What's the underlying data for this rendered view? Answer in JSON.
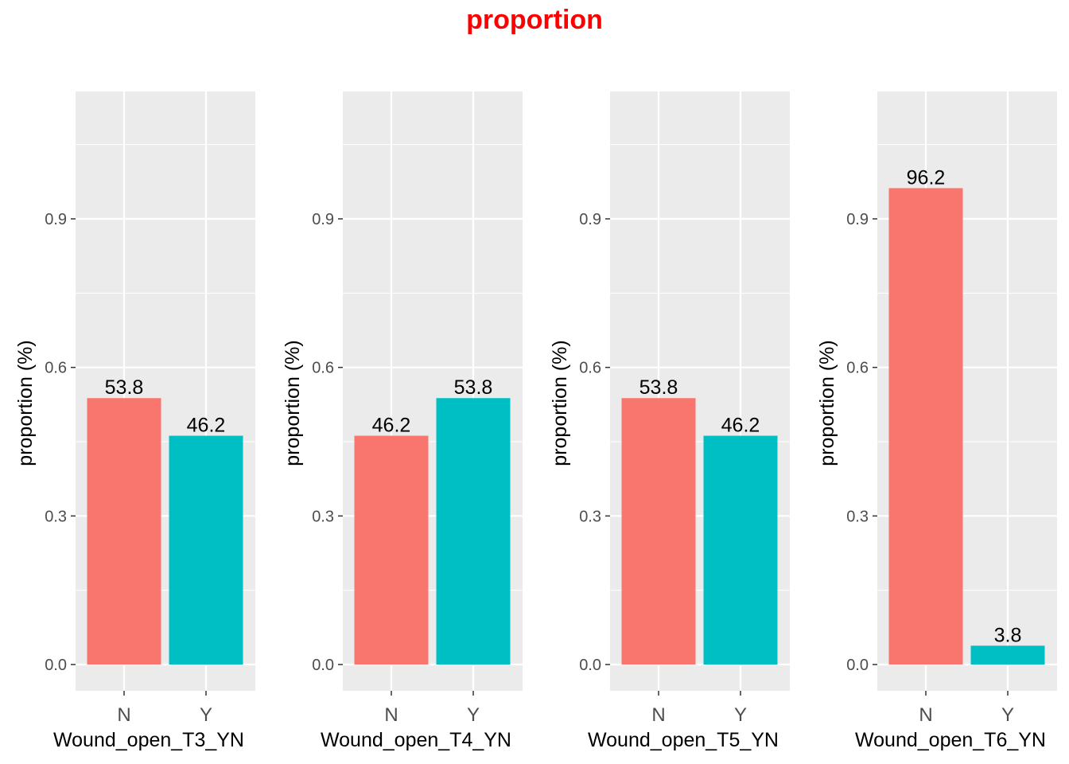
{
  "title": "proportion",
  "colors": {
    "title": "#ff0000",
    "panel_background": "#ebebeb",
    "grid": "#ffffff",
    "tick_text": "#4d4d4d",
    "N": "#f8766d",
    "Y": "#00bfc4"
  },
  "chart_data": [
    {
      "type": "bar",
      "categories": [
        "N",
        "Y"
      ],
      "values": [
        0.538,
        0.462
      ],
      "data_labels": [
        "53.8",
        "46.2"
      ],
      "xlabel": "Wound_open_T3_YN",
      "ylabel": "proportion (%)",
      "ylim": [
        -0.05,
        1.16
      ],
      "yticks": [
        "0.0",
        "0.3",
        "0.6",
        "0.9"
      ],
      "grid": true,
      "legend": "none"
    },
    {
      "type": "bar",
      "categories": [
        "N",
        "Y"
      ],
      "values": [
        0.462,
        0.538
      ],
      "data_labels": [
        "46.2",
        "53.8"
      ],
      "xlabel": "Wound_open_T4_YN",
      "ylabel": "proportion (%)",
      "ylim": [
        -0.05,
        1.16
      ],
      "yticks": [
        "0.0",
        "0.3",
        "0.6",
        "0.9"
      ],
      "grid": true,
      "legend": "none"
    },
    {
      "type": "bar",
      "categories": [
        "N",
        "Y"
      ],
      "values": [
        0.538,
        0.462
      ],
      "data_labels": [
        "53.8",
        "46.2"
      ],
      "xlabel": "Wound_open_T5_YN",
      "ylabel": "proportion (%)",
      "ylim": [
        -0.05,
        1.16
      ],
      "yticks": [
        "0.0",
        "0.3",
        "0.6",
        "0.9"
      ],
      "grid": true,
      "legend": "none"
    },
    {
      "type": "bar",
      "categories": [
        "N",
        "Y"
      ],
      "values": [
        0.962,
        0.038
      ],
      "data_labels": [
        "96.2",
        "3.8"
      ],
      "xlabel": "Wound_open_T6_YN",
      "ylabel": "proportion (%)",
      "ylim": [
        -0.05,
        1.16
      ],
      "yticks": [
        "0.0",
        "0.3",
        "0.6",
        "0.9"
      ],
      "grid": true,
      "legend": "none"
    }
  ]
}
